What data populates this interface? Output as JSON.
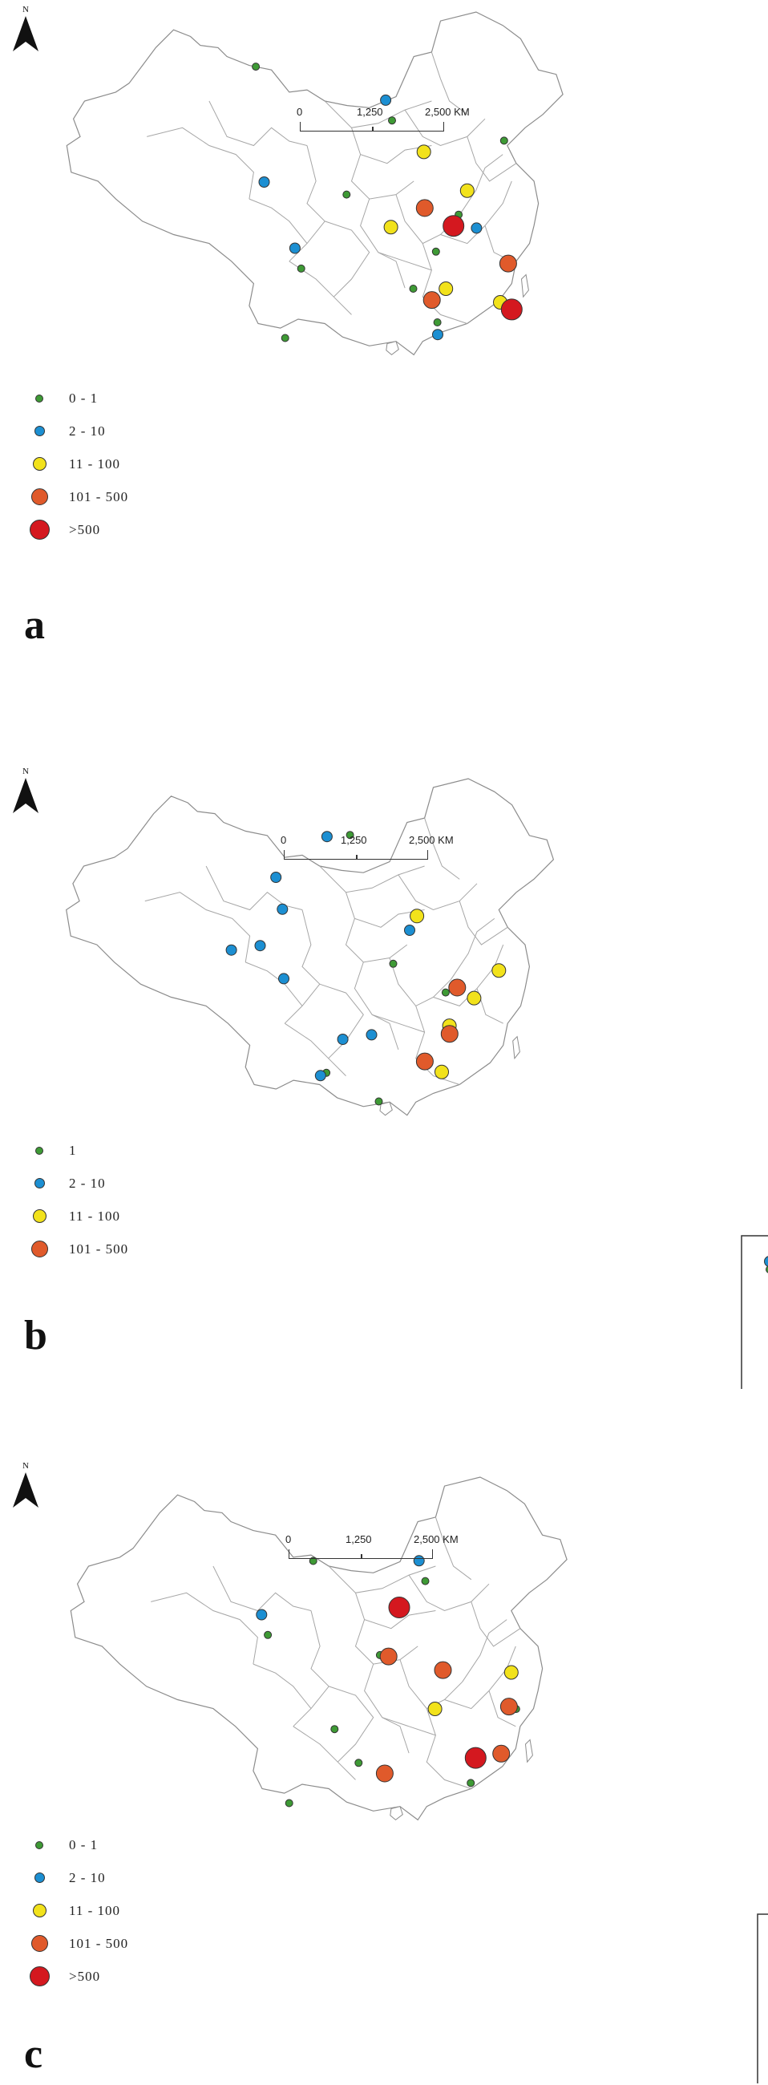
{
  "scale_labels": [
    "0",
    "1,250",
    "2,500 KM"
  ],
  "north_label": "N",
  "category_colors": {
    "0 - 1": "#3e9a35",
    "1": "#3e9a35",
    "2 - 10": "#1c8fd2",
    "11 - 100": "#f2e21b",
    "101 - 500": "#e05a2b",
    ">500": "#d4181f"
  },
  "panels": [
    {
      "label": "a",
      "legend": [
        "0 - 1",
        "2 - 10",
        "11 - 100",
        "101 - 500",
        ">500"
      ],
      "points": [
        {
          "cat": "0 - 1",
          "n": 40
        },
        {
          "cat": "0 - 1",
          "n": 80
        },
        {
          "cat": "0 - 1",
          "n": 110
        },
        {
          "cat": "0 - 1",
          "n": 200
        },
        {
          "cat": "0 - 1",
          "n": 140
        },
        {
          "cat": "0 - 1",
          "n": 260
        },
        {
          "cat": "0 - 1",
          "n": 320
        },
        {
          "cat": "0 - 1",
          "n": 380
        },
        {
          "cat": "0 - 1",
          "n": 440
        },
        {
          "cat": "0 - 1",
          "n": 500
        },
        {
          "cat": "2 - 10",
          "n": 60
        },
        {
          "cat": "2 - 10",
          "n": 160
        },
        {
          "cat": "2 - 10",
          "n": 230
        },
        {
          "cat": "2 - 10",
          "n": 350
        },
        {
          "cat": "2 - 10",
          "n": 470
        },
        {
          "cat": "11 - 100",
          "n": 90
        },
        {
          "cat": "11 - 100",
          "n": 180
        },
        {
          "cat": "11 - 100",
          "n": 270
        },
        {
          "cat": "11 - 100",
          "n": 360
        },
        {
          "cat": "11 - 100",
          "n": 420
        },
        {
          "cat": "101 - 500",
          "n": 120
        },
        {
          "cat": "101 - 500",
          "n": 300
        },
        {
          "cat": "101 - 500",
          "n": 410
        },
        {
          "cat": ">500",
          "n": 150
        },
        {
          "cat": ">500",
          "n": 250
        }
      ]
    },
    {
      "label": "b",
      "legend": [
        "1",
        "2 - 10",
        "11 - 100",
        "101 - 500"
      ],
      "points": [
        {
          "cat": "1",
          "n": 40
        },
        {
          "cat": "1",
          "n": 130
        },
        {
          "cat": "1",
          "n": 240
        },
        {
          "cat": "1",
          "n": 330
        },
        {
          "cat": "1",
          "n": 460
        },
        {
          "cat": "2 - 10",
          "n": 60
        },
        {
          "cat": "2 - 10",
          "n": 90
        },
        {
          "cat": "2 - 10",
          "n": 150
        },
        {
          "cat": "2 - 10",
          "n": 210
        },
        {
          "cat": "2 - 10",
          "n": 280
        },
        {
          "cat": "2 - 10",
          "n": 340
        },
        {
          "cat": "2 - 10",
          "n": 400
        },
        {
          "cat": "2 - 10",
          "n": 430
        },
        {
          "cat": "2 - 10",
          "n": 480
        },
        {
          "cat": "2 - 10",
          "n": 520
        },
        {
          "cat": "11 - 100",
          "n": 70
        },
        {
          "cat": "11 - 100",
          "n": 170
        },
        {
          "cat": "11 - 100",
          "n": 260
        },
        {
          "cat": "11 - 100",
          "n": 360
        },
        {
          "cat": "11 - 100",
          "n": 450
        },
        {
          "cat": "101 - 500",
          "n": 110
        },
        {
          "cat": "101 - 500",
          "n": 300
        },
        {
          "cat": "101 - 500",
          "n": 390
        }
      ]
    },
    {
      "label": "c",
      "legend": [
        "0 - 1",
        "2 - 10",
        "11 - 100",
        "101 - 500",
        ">500"
      ],
      "points": [
        {
          "cat": "0 - 1",
          "n": 40
        },
        {
          "cat": "0 - 1",
          "n": 100
        },
        {
          "cat": "0 - 1",
          "n": 160
        },
        {
          "cat": "0 - 1",
          "n": 220
        },
        {
          "cat": "0 - 1",
          "n": 280
        },
        {
          "cat": "0 - 1",
          "n": 340
        },
        {
          "cat": "0 - 1",
          "n": 400
        },
        {
          "cat": "0 - 1",
          "n": 460
        },
        {
          "cat": "0 - 1",
          "n": 520
        },
        {
          "cat": "2 - 10",
          "n": 130
        },
        {
          "cat": "2 - 10",
          "n": 310
        },
        {
          "cat": "11 - 100",
          "n": 70
        },
        {
          "cat": "11 - 100",
          "n": 250
        },
        {
          "cat": "101 - 500",
          "n": 90
        },
        {
          "cat": "101 - 500",
          "n": 190
        },
        {
          "cat": "101 - 500",
          "n": 290
        },
        {
          "cat": "101 - 500",
          "n": 370
        },
        {
          "cat": "101 - 500",
          "n": 430
        },
        {
          "cat": ">500",
          "n": 170
        },
        {
          "cat": ">500",
          "n": 350
        }
      ]
    }
  ]
}
